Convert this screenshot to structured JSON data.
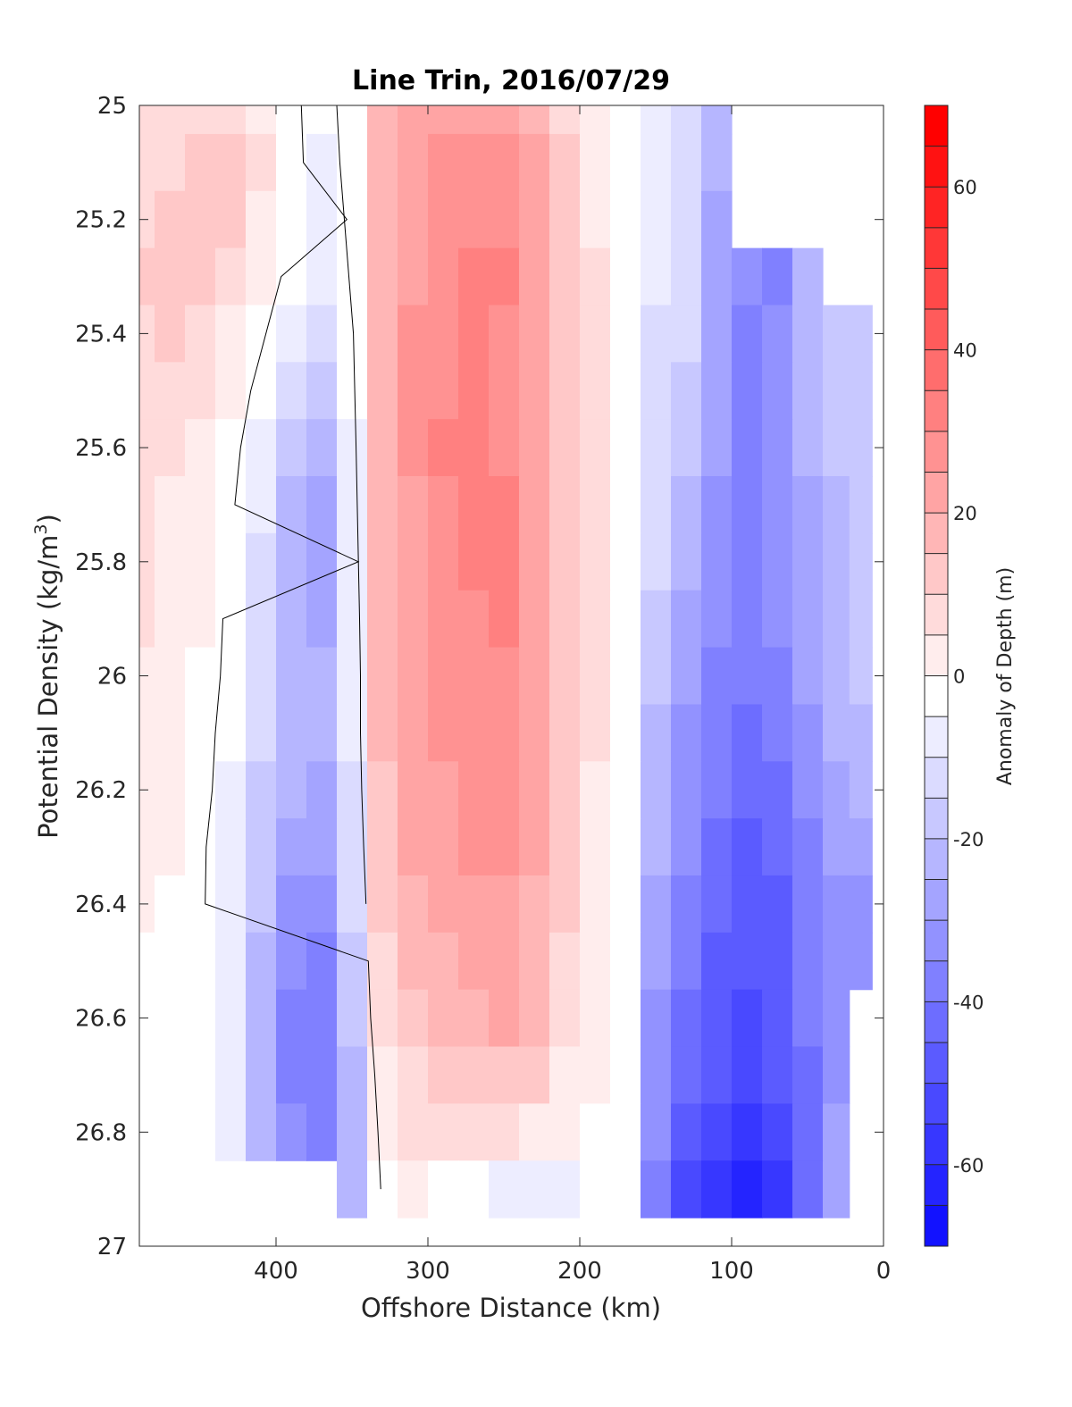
{
  "chart_data": {
    "type": "heatmap",
    "title": "Line Trin, 2016/07/29",
    "xlabel": "Offshore Distance (km)",
    "ylabel_main": "Potential Density (kg/m",
    "ylabel_sup": "3",
    "ylabel_close": ")",
    "colorbar_label": "Anomaly of Depth (m)",
    "xlim": [
      490,
      0
    ],
    "x_reversed": true,
    "ylim": [
      25,
      27
    ],
    "y_reversed": true,
    "x_ticks": [
      400,
      300,
      200,
      100,
      0
    ],
    "x_tick_labels": [
      "400",
      "300",
      "200",
      "100",
      "0"
    ],
    "y_ticks": [
      25,
      25.2,
      25.4,
      25.6,
      25.8,
      26,
      26.2,
      26.4,
      26.6,
      26.8,
      27
    ],
    "y_tick_labels": [
      "25",
      "25.2",
      "25.4",
      "25.6",
      "25.8",
      "26",
      "26.2",
      "26.4",
      "26.6",
      "26.8",
      "27"
    ],
    "clim": [
      -70,
      70
    ],
    "contour_step": 5,
    "colorbar_ticks": [
      60,
      40,
      20,
      0,
      -20,
      -40,
      -60
    ],
    "colorbar_tick_labels": [
      "60",
      "40",
      "20",
      "0",
      "-20",
      "-40",
      "-60"
    ],
    "colormap": {
      "negative": "#0000ff",
      "zero": "#ffffff",
      "positive": "#ff0000"
    },
    "grid": false,
    "x_stations": [
      490,
      470,
      450,
      430,
      410,
      390,
      370,
      350,
      330,
      310,
      290,
      270,
      250,
      230,
      210,
      190,
      170,
      150,
      130,
      110,
      90,
      70,
      50,
      30,
      15
    ],
    "y_levels": [
      25.0,
      25.1,
      25.2,
      25.3,
      25.4,
      25.5,
      25.6,
      25.7,
      25.8,
      25.9,
      26.0,
      26.1,
      26.2,
      26.3,
      26.4,
      26.5,
      26.6,
      26.7,
      26.8,
      26.9
    ],
    "values": [
      [
        8,
        10,
        12,
        11,
        6,
        1,
        -2,
        2,
        18,
        24,
        27,
        27,
        26,
        22,
        12,
        6,
        0,
        -5,
        -8,
        -20,
        null,
        null,
        null,
        null,
        null
      ],
      [
        10,
        12,
        14,
        13,
        8,
        2,
        -3,
        2,
        19,
        26,
        29,
        29,
        28,
        24,
        13,
        7,
        0,
        -6,
        -9,
        -22,
        null,
        null,
        null,
        null,
        null
      ],
      [
        12,
        14,
        16,
        14,
        7,
        0,
        -5,
        1,
        19,
        27,
        31,
        32,
        30,
        25,
        14,
        7,
        0,
        -6,
        -10,
        -23,
        null,
        null,
        null,
        null,
        null
      ],
      [
        14,
        15,
        13,
        10,
        4,
        -2,
        -7,
        0,
        20,
        27,
        31,
        33,
        34,
        27,
        16,
        8,
        0,
        -7,
        -11,
        -24,
        -30,
        -33,
        -18,
        null,
        null
      ],
      [
        12,
        13,
        10,
        7,
        1,
        -5,
        -10,
        -1,
        20,
        28,
        31,
        33,
        32,
        26,
        17,
        9,
        0,
        -8,
        -12,
        -25,
        -34,
        -30,
        -20,
        -16,
        -14
      ],
      [
        10,
        10,
        8,
        4,
        -2,
        -9,
        -14,
        -2,
        20,
        28,
        32,
        33,
        31,
        25,
        16,
        8,
        0,
        -9,
        -14,
        -26,
        -33,
        -29,
        -21,
        -16,
        -13
      ],
      [
        9,
        8,
        6,
        2,
        -4,
        -13,
        -20,
        -3,
        19,
        28,
        33,
        34,
        32,
        25,
        16,
        8,
        0,
        -10,
        -16,
        -27,
        -33,
        -29,
        -22,
        -17,
        -13
      ],
      [
        9,
        7,
        5,
        1,
        -6,
        -18,
        -23,
        -4,
        19,
        27,
        30,
        33,
        33,
        25,
        16,
        8,
        0,
        -11,
        -18,
        -28,
        -33,
        -30,
        -23,
        -18,
        -14
      ],
      [
        9,
        7,
        4,
        0,
        -8,
        -19,
        -27,
        -5,
        19,
        27,
        30,
        33,
        34,
        26,
        17,
        8,
        0,
        -12,
        -21,
        -30,
        -34,
        -31,
        -23,
        -18,
        -14
      ],
      [
        8,
        6,
        3,
        -1,
        -10,
        -19,
        -25,
        -6,
        18,
        27,
        30,
        32,
        33,
        26,
        17,
        8,
        0,
        -14,
        -23,
        -32,
        -35,
        -32,
        -24,
        -19,
        -15
      ],
      [
        7,
        5,
        2,
        -1,
        -11,
        -20,
        -20,
        -7,
        18,
        26,
        29,
        30,
        29,
        24,
        16,
        8,
        0,
        -16,
        -26,
        -34,
        -37,
        -34,
        -26,
        -21,
        -16
      ],
      [
        6,
        4,
        2,
        -2,
        -12,
        -20,
        -20,
        -7,
        18,
        25,
        28,
        30,
        29,
        24,
        16,
        8,
        0,
        -18,
        -28,
        -35,
        -39,
        -36,
        -28,
        -22,
        -18
      ],
      [
        5,
        4,
        2,
        -3,
        -13,
        -22,
        -23,
        -8,
        17,
        24,
        27,
        29,
        28,
        23,
        15,
        7,
        0,
        -20,
        -30,
        -37,
        -41,
        -38,
        -30,
        -24,
        -22
      ],
      [
        4,
        3,
        1,
        -4,
        -14,
        -25,
        -27,
        -10,
        16,
        23,
        26,
        28,
        28,
        23,
        14,
        7,
        0,
        -22,
        -32,
        -39,
        -44,
        -41,
        -33,
        -27,
        -25
      ],
      [
        3,
        2,
        1,
        -5,
        -16,
        -28,
        -30,
        -12,
        14,
        21,
        24,
        27,
        27,
        22,
        13,
        6,
        0,
        -24,
        -34,
        -41,
        -45,
        -43,
        -35,
        -29,
        -28
      ],
      [
        2,
        1,
        0,
        -6,
        -18,
        -31,
        -33,
        -14,
        12,
        19,
        22,
        25,
        27,
        21,
        12,
        5,
        0,
        -26,
        -36,
        -43,
        -46,
        -44,
        -36,
        -30,
        -30
      ],
      [
        1,
        1,
        0,
        -7,
        -20,
        -34,
        -35,
        -16,
        10,
        16,
        19,
        22,
        23,
        18,
        10,
        4,
        0,
        -28,
        -40,
        -45,
        -48,
        -45,
        -37,
        -30,
        null
      ],
      [
        0,
        0,
        0,
        -6,
        -20,
        -34,
        -34,
        -18,
        6,
        12,
        14,
        16,
        17,
        13,
        7,
        3,
        0,
        -30,
        -42,
        -47,
        -50,
        -47,
        -38,
        -28,
        null
      ],
      [
        0,
        0,
        0,
        -5,
        -18,
        -32,
        -33,
        -18,
        3,
        8,
        8,
        10,
        10,
        7,
        3,
        1,
        0,
        -32,
        -45,
        -51,
        -55,
        -51,
        -38,
        -25,
        null
      ],
      [
        null,
        null,
        null,
        null,
        null,
        null,
        null,
        -18,
        1,
        4,
        2,
        0,
        -3,
        -5,
        -3,
        -1,
        0,
        -33,
        -48,
        -56,
        -62,
        -55,
        -39,
        -25,
        null
      ]
    ]
  }
}
